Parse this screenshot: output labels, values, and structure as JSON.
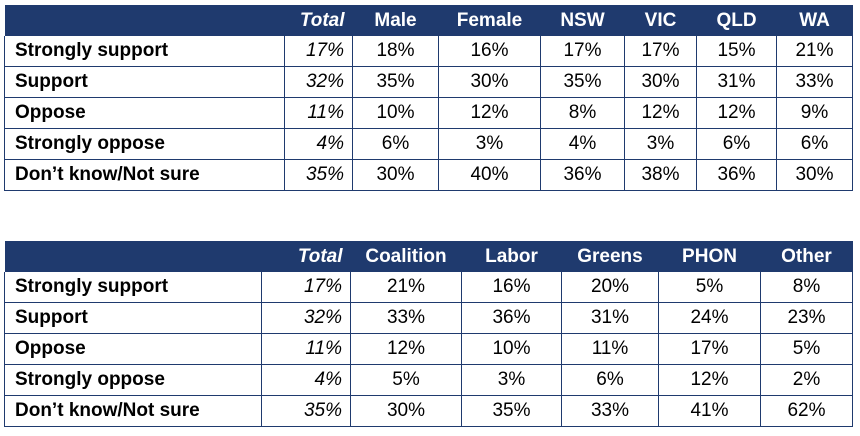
{
  "table1": {
    "headers": [
      "",
      "Total",
      "Male",
      "Female",
      "NSW",
      "VIC",
      "QLD",
      "WA"
    ],
    "rows": [
      {
        "label": "Strongly support",
        "values": [
          "17%",
          "18%",
          "16%",
          "17%",
          "17%",
          "15%",
          "21%"
        ]
      },
      {
        "label": "Support",
        "values": [
          "32%",
          "35%",
          "30%",
          "35%",
          "30%",
          "31%",
          "33%"
        ]
      },
      {
        "label": "Oppose",
        "values": [
          "11%",
          "10%",
          "12%",
          "8%",
          "12%",
          "12%",
          "9%"
        ]
      },
      {
        "label": "Strongly oppose",
        "values": [
          "4%",
          "6%",
          "3%",
          "4%",
          "3%",
          "6%",
          "6%"
        ]
      },
      {
        "label": "Don’t know/Not sure",
        "values": [
          "35%",
          "30%",
          "40%",
          "36%",
          "38%",
          "36%",
          "30%"
        ]
      }
    ]
  },
  "table2": {
    "headers": [
      "",
      "Total",
      "Coalition",
      "Labor",
      "Greens",
      "PHON",
      "Other"
    ],
    "rows": [
      {
        "label": "Strongly support",
        "values": [
          "17%",
          "21%",
          "16%",
          "20%",
          "5%",
          "8%"
        ]
      },
      {
        "label": "Support",
        "values": [
          "32%",
          "33%",
          "36%",
          "31%",
          "24%",
          "23%"
        ]
      },
      {
        "label": "Oppose",
        "values": [
          "11%",
          "12%",
          "10%",
          "11%",
          "17%",
          "5%"
        ]
      },
      {
        "label": "Strongly oppose",
        "values": [
          "4%",
          "5%",
          "3%",
          "6%",
          "12%",
          "2%"
        ]
      },
      {
        "label": "Don’t know/Not sure",
        "values": [
          "35%",
          "30%",
          "35%",
          "33%",
          "41%",
          "62%"
        ]
      }
    ]
  },
  "colors": {
    "header_bg": "#1f3a6e",
    "header_text": "#ffffff",
    "border": "#1f3a6e"
  }
}
